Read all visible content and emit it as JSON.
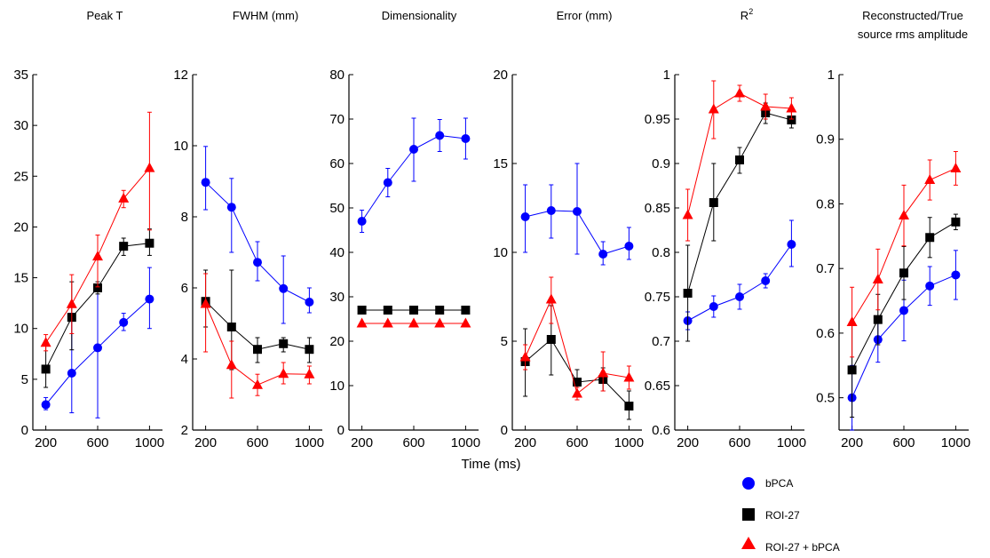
{
  "colors": {
    "bPCA": "#0000ff",
    "ROI-27": "#000000",
    "ROI-27 + bPCA": "#ff0000"
  },
  "xlabel": "Time (ms)",
  "legend": {
    "placement": "bottom-right",
    "entries": [
      {
        "label": "bPCA",
        "marker": "circle",
        "color": "#0000ff"
      },
      {
        "label": "ROI-27",
        "marker": "square",
        "color": "#000000"
      },
      {
        "label": "ROI-27 + bPCA",
        "marker": "triangle",
        "color": "#ff0000"
      }
    ]
  },
  "chart_data": [
    {
      "type": "line",
      "title": "Peak T",
      "x": [
        200,
        400,
        600,
        800,
        1000
      ],
      "xticks": [
        "200",
        "600",
        "1000"
      ],
      "ylim": [
        0,
        35
      ],
      "yticks": [
        "0",
        "5",
        "10",
        "15",
        "20",
        "25",
        "30",
        "35"
      ],
      "series": [
        {
          "name": "bPCA",
          "values": [
            2.5,
            5.6,
            8.1,
            10.6,
            12.9
          ],
          "err": [
            [
              2.0,
              3.2
            ],
            [
              1.7,
              11.5
            ],
            [
              1.2,
              13.9
            ],
            [
              9.8,
              11.5
            ],
            [
              10.0,
              16.0
            ]
          ]
        },
        {
          "name": "ROI-27",
          "values": [
            6.0,
            11.1,
            14.0,
            18.1,
            18.4
          ],
          "err": [
            [
              4.2,
              8.5
            ],
            [
              7.9,
              14.6
            ],
            [
              13.4,
              14.6
            ],
            [
              17.2,
              18.9
            ],
            [
              17.2,
              19.8
            ]
          ]
        },
        {
          "name": "ROI-27 + bPCA",
          "values": [
            8.6,
            12.4,
            17.1,
            22.8,
            25.8
          ],
          "err": [
            [
              7.8,
              9.4
            ],
            [
              9.5,
              15.3
            ],
            [
              14.1,
              19.2
            ],
            [
              21.9,
              23.6
            ],
            [
              19.7,
              31.3
            ]
          ]
        }
      ]
    },
    {
      "type": "line",
      "title": "FWHM (mm)",
      "x": [
        200,
        400,
        600,
        800,
        1000
      ],
      "xticks": [
        "200",
        "600",
        "1000"
      ],
      "ylim": [
        2,
        12
      ],
      "yticks": [
        "2",
        "4",
        "6",
        "8",
        "10",
        "12"
      ],
      "series": [
        {
          "name": "bPCA",
          "values": [
            8.97,
            8.27,
            6.72,
            5.98,
            5.6
          ],
          "err": [
            [
              8.2,
              9.98
            ],
            [
              7.0,
              9.08
            ],
            [
              6.2,
              7.3
            ],
            [
              5.0,
              6.9
            ],
            [
              5.3,
              6.0
            ]
          ]
        },
        {
          "name": "ROI-27",
          "values": [
            5.62,
            4.9,
            4.27,
            4.43,
            4.27
          ],
          "err": [
            [
              4.9,
              6.5
            ],
            [
              3.7,
              6.5
            ],
            [
              3.9,
              4.6
            ],
            [
              4.2,
              4.6
            ],
            [
              3.9,
              4.6
            ]
          ]
        },
        {
          "name": "ROI-27 + bPCA",
          "values": [
            5.55,
            3.83,
            3.27,
            3.58,
            3.57
          ],
          "err": [
            [
              4.2,
              6.4
            ],
            [
              2.9,
              4.5
            ],
            [
              2.97,
              3.57
            ],
            [
              3.3,
              3.9
            ],
            [
              3.3,
              3.8
            ]
          ]
        }
      ]
    },
    {
      "type": "line",
      "title": "Dimensionality",
      "x": [
        200,
        400,
        600,
        800,
        1000
      ],
      "xticks": [
        "200",
        "600",
        "1000"
      ],
      "ylim": [
        0,
        80
      ],
      "yticks": [
        "0",
        "10",
        "20",
        "30",
        "40",
        "50",
        "60",
        "70",
        "80"
      ],
      "series": [
        {
          "name": "bPCA",
          "values": [
            47.0,
            55.7,
            63.2,
            66.3,
            65.6
          ],
          "err": [
            [
              44.5,
              49.5
            ],
            [
              52.5,
              58.9
            ],
            [
              56.0,
              70.2
            ],
            [
              62.7,
              69.9
            ],
            [
              61.0,
              70.2
            ]
          ]
        },
        {
          "name": "ROI-27",
          "values": [
            27,
            27,
            27,
            27,
            27
          ],
          "err": []
        },
        {
          "name": "ROI-27 + bPCA",
          "values": [
            24,
            24,
            24,
            24,
            24
          ],
          "err": []
        }
      ]
    },
    {
      "type": "line",
      "title": "Error (mm)",
      "x": [
        200,
        400,
        600,
        800,
        1000
      ],
      "xticks": [
        "200",
        "600",
        "1000"
      ],
      "ylim": [
        0,
        20
      ],
      "yticks": [
        "0",
        "5",
        "10",
        "15",
        "20"
      ],
      "series": [
        {
          "name": "bPCA",
          "values": [
            12.0,
            12.35,
            12.3,
            9.9,
            10.35
          ],
          "err": [
            [
              10.0,
              13.8
            ],
            [
              10.8,
              13.8
            ],
            [
              9.9,
              15.0
            ],
            [
              9.3,
              10.6
            ],
            [
              9.6,
              11.4
            ]
          ]
        },
        {
          "name": "ROI-27",
          "values": [
            3.85,
            5.1,
            2.7,
            2.85,
            1.35
          ],
          "err": [
            [
              1.9,
              5.7
            ],
            [
              3.1,
              7.0
            ],
            [
              2.1,
              3.4
            ],
            [
              2.2,
              3.5
            ],
            [
              0.6,
              2.2
            ]
          ]
        },
        {
          "name": "ROI-27 + bPCA",
          "values": [
            4.1,
            7.35,
            2.05,
            3.2,
            2.95
          ],
          "err": [
            [
              3.4,
              4.8
            ],
            [
              6.0,
              8.6
            ],
            [
              1.7,
              2.4
            ],
            [
              2.2,
              4.4
            ],
            [
              2.3,
              3.6
            ]
          ]
        }
      ]
    },
    {
      "type": "line",
      "title": "R",
      "title_sup": "2",
      "x": [
        200,
        400,
        600,
        800,
        1000
      ],
      "xticks": [
        "200",
        "600",
        "1000"
      ],
      "ylim": [
        0.6,
        1
      ],
      "yticks": [
        "0.6",
        "0.65",
        "0.7",
        "0.75",
        "0.8",
        "0.85",
        "0.9",
        "0.95",
        "1"
      ],
      "series": [
        {
          "name": "bPCA",
          "values": [
            0.723,
            0.739,
            0.75,
            0.768,
            0.809
          ],
          "err": [
            [
              0.713,
              0.733
            ],
            [
              0.727,
              0.751
            ],
            [
              0.736,
              0.764
            ],
            [
              0.76,
              0.776
            ],
            [
              0.784,
              0.836
            ]
          ]
        },
        {
          "name": "ROI-27",
          "values": [
            0.754,
            0.856,
            0.904,
            0.957,
            0.949
          ],
          "err": [
            [
              0.7,
              0.808
            ],
            [
              0.813,
              0.9
            ],
            [
              0.889,
              0.918
            ],
            [
              0.945,
              0.968
            ],
            [
              0.94,
              0.958
            ]
          ]
        },
        {
          "name": "ROI-27 + bPCA",
          "values": [
            0.842,
            0.961,
            0.979,
            0.964,
            0.962
          ],
          "err": [
            [
              0.813,
              0.871
            ],
            [
              0.928,
              0.993
            ],
            [
              0.97,
              0.988
            ],
            [
              0.95,
              0.978
            ],
            [
              0.95,
              0.974
            ]
          ]
        }
      ]
    },
    {
      "type": "line",
      "title": "Reconstructed/True source rms amplitude",
      "title_lines": [
        "Reconstructed/True",
        "source rms amplitude"
      ],
      "x": [
        200,
        400,
        600,
        800,
        1000
      ],
      "xticks": [
        "200",
        "600",
        "1000"
      ],
      "ylim": [
        0.45,
        1
      ],
      "yticks": [
        "0.5",
        "0.6",
        "0.7",
        "0.8",
        "0.9",
        "1"
      ],
      "series": [
        {
          "name": "bPCA",
          "values": [
            0.5,
            0.59,
            0.635,
            0.673,
            0.69
          ],
          "err": [
            [
              0.45,
              0.55
            ],
            [
              0.555,
              0.625
            ],
            [
              0.588,
              0.682
            ],
            [
              0.643,
              0.703
            ],
            [
              0.652,
              0.728
            ]
          ]
        },
        {
          "name": "ROI-27",
          "values": [
            0.543,
            0.621,
            0.693,
            0.748,
            0.772
          ],
          "err": [
            [
              0.47,
              0.616
            ],
            [
              0.582,
              0.66
            ],
            [
              0.652,
              0.734
            ],
            [
              0.717,
              0.779
            ],
            [
              0.76,
              0.784
            ]
          ]
        },
        {
          "name": "ROI-27 + bPCA",
          "values": [
            0.617,
            0.683,
            0.782,
            0.837,
            0.855
          ],
          "err": [
            [
              0.563,
              0.671
            ],
            [
              0.636,
              0.73
            ],
            [
              0.735,
              0.829
            ],
            [
              0.806,
              0.868
            ],
            [
              0.829,
              0.881
            ]
          ]
        }
      ]
    }
  ]
}
